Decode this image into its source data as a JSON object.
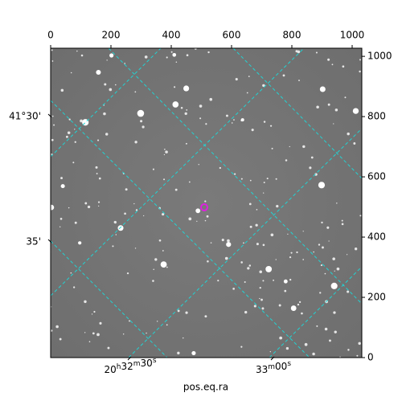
{
  "chart_data": {
    "type": "image",
    "xlabel": "pos.eq.ra",
    "xlim": [
      0,
      1032
    ],
    "ylim": [
      0,
      1027
    ],
    "xticks": [
      0,
      200,
      400,
      600,
      800,
      1000
    ],
    "yticks": [
      0,
      200,
      400,
      600,
      800,
      1000
    ],
    "ra_tick_labels": [
      "20h32m30s",
      "33m00s"
    ],
    "dec_tick_labels": [
      "41°30'",
      "35'"
    ]
  }
}
